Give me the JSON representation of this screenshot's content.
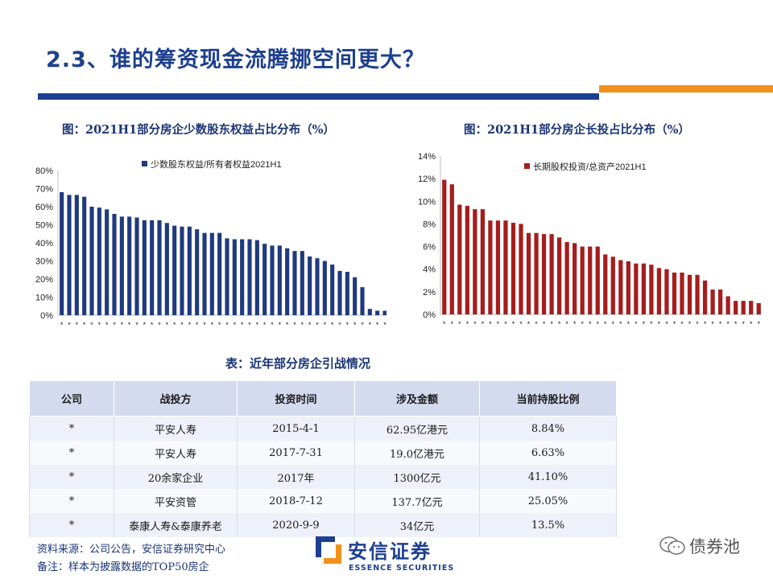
{
  "header": {
    "title": "2.3、谁的筹资现金流腾挪空间更大？"
  },
  "colors": {
    "brand_blue": "#1c3f94",
    "accent_orange": "#f1901c",
    "bar_blue": "#1f3a7e",
    "bar_red": "#a51d1d"
  },
  "chart_left": {
    "caption": "图：2021H1部分房企少数股东权益占比分布（%）"
  },
  "chart_right": {
    "caption": "图：2021H1部分房企长投占比分布（%）"
  },
  "chart_data": [
    {
      "type": "bar",
      "title": "图：2021H1部分房企少数股东权益占比分布（%）",
      "legend": "少数股东权益/所有者权益2021H1",
      "legend_position": "top-center",
      "category_label": "*",
      "ylim": [
        0,
        0.8
      ],
      "yticks": [
        "0%",
        "10%",
        "20%",
        "30%",
        "40%",
        "50%",
        "60%",
        "70%",
        "80%"
      ],
      "color": "#1f3a7e",
      "values": [
        0.68,
        0.665,
        0.665,
        0.655,
        0.6,
        0.595,
        0.585,
        0.56,
        0.545,
        0.545,
        0.54,
        0.525,
        0.525,
        0.525,
        0.51,
        0.495,
        0.49,
        0.49,
        0.475,
        0.455,
        0.455,
        0.455,
        0.425,
        0.42,
        0.42,
        0.42,
        0.415,
        0.395,
        0.385,
        0.385,
        0.37,
        0.355,
        0.355,
        0.325,
        0.315,
        0.3,
        0.28,
        0.245,
        0.24,
        0.21,
        0.155,
        0.035,
        0.025,
        0.025,
        0.025
      ]
    },
    {
      "type": "bar",
      "title": "图：2021H1部分房企长投占比分布（%）",
      "legend": "长期股权投资/总资产2021H1",
      "legend_position": "top-center",
      "category_label": "*",
      "ylim": [
        0,
        0.14
      ],
      "yticks": [
        "0%",
        "2%",
        "4%",
        "6%",
        "8%",
        "10%",
        "12%",
        "14%"
      ],
      "color": "#a51d1d",
      "values": [
        0.119,
        0.115,
        0.097,
        0.096,
        0.093,
        0.093,
        0.083,
        0.083,
        0.083,
        0.081,
        0.08,
        0.072,
        0.072,
        0.071,
        0.071,
        0.068,
        0.064,
        0.063,
        0.06,
        0.06,
        0.06,
        0.053,
        0.051,
        0.048,
        0.047,
        0.045,
        0.045,
        0.044,
        0.041,
        0.04,
        0.037,
        0.037,
        0.035,
        0.035,
        0.03,
        0.022,
        0.022,
        0.016,
        0.012,
        0.012,
        0.012,
        0.01
      ]
    }
  ],
  "table": {
    "caption": "表：近年部分房企引战情况",
    "headers": [
      "公司",
      "战投方",
      "投资时间",
      "涉及金额",
      "当前持股比例"
    ],
    "rows": [
      [
        "*",
        "平安人寿",
        "2015-4-1",
        "62.95亿港元",
        "8.84%"
      ],
      [
        "*",
        "平安人寿",
        "2017-7-31",
        "19.0亿港元",
        "6.63%"
      ],
      [
        "*",
        "20余家企业",
        "2017年",
        "1300亿元",
        "41.10%"
      ],
      [
        "*",
        "平安资管",
        "2018-7-12",
        "137.7亿元",
        "25.05%"
      ],
      [
        "*",
        "泰康人寿&泰康养老",
        "2020-9-9",
        "34亿元",
        "13.5%"
      ]
    ]
  },
  "footer": {
    "source": "资料来源：公司公告，安信证券研究中心",
    "note": "备注：样本为披露数据的TOP50房企",
    "logo_cn": "安信证券",
    "logo_en": "ESSENCE SECURITIES",
    "wechat_name": "债券池"
  }
}
